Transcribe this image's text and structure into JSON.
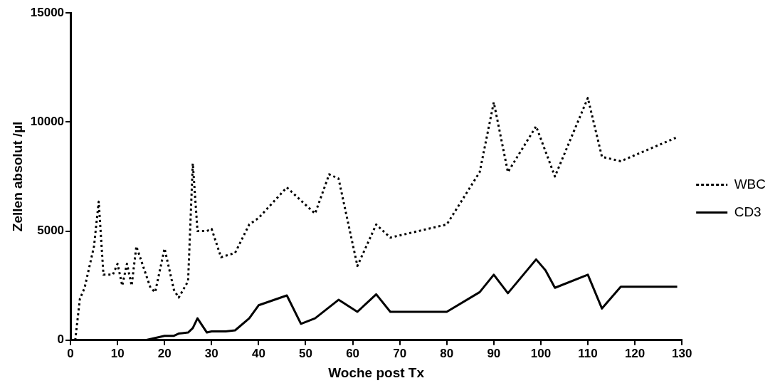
{
  "chart_data": {
    "type": "line",
    "xlabel": "Woche post Tx",
    "ylabel": "Zellen absolut /µl",
    "xlim": [
      0,
      130
    ],
    "xticks": [
      0,
      10,
      20,
      30,
      40,
      50,
      60,
      70,
      80,
      90,
      100,
      110,
      120,
      130
    ],
    "ylim": [
      0,
      15000
    ],
    "yticks": [
      0,
      5000,
      10000,
      15000
    ],
    "grid": false,
    "legend": "right",
    "marker": "none",
    "series": [
      {
        "name": "WBC",
        "color": "#000000",
        "line_style": "dotted",
        "x": [
          1,
          2,
          3,
          5,
          6,
          7,
          9,
          10,
          11,
          12,
          13,
          14,
          17,
          18,
          20,
          22,
          23,
          25,
          26,
          27,
          29,
          30,
          32,
          35,
          38,
          40,
          46,
          52,
          55,
          57,
          61,
          65,
          68,
          80,
          87,
          90,
          93,
          99,
          103,
          110,
          113,
          117,
          129
        ],
        "values": [
          0,
          1900,
          2400,
          4300,
          6350,
          3000,
          3000,
          3500,
          2500,
          3500,
          2500,
          4300,
          2400,
          2200,
          4200,
          2300,
          1950,
          2700,
          8100,
          5000,
          5000,
          5100,
          3800,
          4000,
          5300,
          5600,
          7000,
          5800,
          7600,
          7400,
          3400,
          5300,
          4700,
          5300,
          7700,
          10900,
          7700,
          9800,
          7500,
          11100,
          8400,
          8200,
          9300
        ]
      },
      {
        "name": "CD3",
        "color": "#000000",
        "line_style": "solid",
        "x": [
          0,
          16,
          18,
          20,
          22,
          23,
          25,
          26,
          27,
          29,
          30,
          33,
          35,
          38,
          40,
          46,
          49,
          52,
          57,
          61,
          65,
          68,
          80,
          87,
          90,
          93,
          99,
          101,
          103,
          110,
          113,
          117,
          129
        ],
        "values": [
          0,
          0,
          100,
          200,
          200,
          300,
          350,
          550,
          1000,
          350,
          400,
          400,
          450,
          1000,
          1600,
          2050,
          750,
          1000,
          1850,
          1300,
          2100,
          1300,
          1300,
          2200,
          3000,
          2150,
          3700,
          3200,
          2400,
          3000,
          1450,
          2450,
          2450
        ]
      }
    ]
  }
}
